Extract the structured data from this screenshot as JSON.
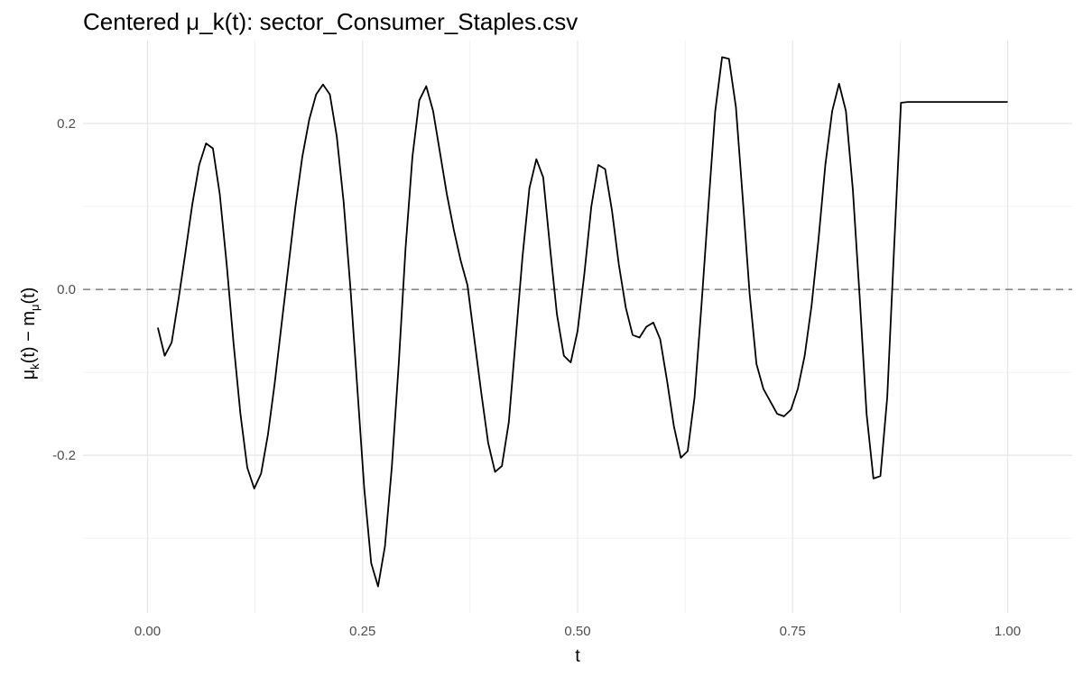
{
  "chart_data": {
    "type": "line",
    "title": "Centered μ_k(t): sector_Consumer_Staples.csv",
    "xlabel": "t",
    "ylabel": {
      "mu": "μ",
      "sub_k": "k",
      "paren1": "(t) − m",
      "sub_mu": "μ",
      "paren2": "(t)"
    },
    "xlim": [
      -0.075,
      1.075
    ],
    "ylim": [
      -0.39,
      0.3
    ],
    "x_ticks": [
      0.0,
      0.25,
      0.5,
      0.75,
      1.0
    ],
    "x_tick_labels": [
      "0.00",
      "0.25",
      "0.50",
      "0.75",
      "1.00"
    ],
    "y_ticks": [
      -0.2,
      0.0,
      0.2
    ],
    "y_tick_labels": [
      "-0.2",
      "0.0",
      "0.2"
    ],
    "grid": true,
    "reference_line": {
      "y": 0.0,
      "style": "dashed",
      "color": "#7f7f7f"
    },
    "series": [
      {
        "color": "#000000",
        "x": [
          0.012,
          0.02,
          0.028,
          0.036,
          0.044,
          0.052,
          0.06,
          0.068,
          0.076,
          0.084,
          0.092,
          0.1,
          0.108,
          0.116,
          0.124,
          0.132,
          0.14,
          0.148,
          0.156,
          0.164,
          0.172,
          0.18,
          0.188,
          0.196,
          0.204,
          0.212,
          0.22,
          0.228,
          0.236,
          0.244,
          0.252,
          0.26,
          0.268,
          0.276,
          0.284,
          0.292,
          0.3,
          0.308,
          0.316,
          0.324,
          0.332,
          0.34,
          0.348,
          0.356,
          0.364,
          0.372,
          0.38,
          0.388,
          0.396,
          0.404,
          0.412,
          0.42,
          0.428,
          0.436,
          0.444,
          0.452,
          0.46,
          0.468,
          0.476,
          0.484,
          0.492,
          0.5,
          0.508,
          0.516,
          0.524,
          0.532,
          0.54,
          0.548,
          0.556,
          0.564,
          0.572,
          0.58,
          0.588,
          0.596,
          0.604,
          0.612,
          0.62,
          0.628,
          0.636,
          0.644,
          0.652,
          0.66,
          0.668,
          0.676,
          0.684,
          0.692,
          0.7,
          0.708,
          0.716,
          0.724,
          0.732,
          0.74,
          0.748,
          0.756,
          0.764,
          0.772,
          0.78,
          0.788,
          0.796,
          0.804,
          0.812,
          0.82,
          0.828,
          0.836,
          0.844,
          0.852,
          0.86,
          0.868,
          0.876,
          0.884,
          0.892,
          0.9,
          0.908,
          0.916,
          0.924,
          0.932,
          0.94,
          0.948,
          0.956,
          0.964,
          0.972,
          0.98,
          0.988,
          0.996,
          1.0
        ],
        "y": [
          -0.046,
          -0.08,
          -0.064,
          -0.012,
          0.044,
          0.102,
          0.15,
          0.176,
          0.17,
          0.115,
          0.03,
          -0.065,
          -0.15,
          -0.215,
          -0.24,
          -0.222,
          -0.175,
          -0.112,
          -0.04,
          0.03,
          0.1,
          0.16,
          0.205,
          0.235,
          0.247,
          0.235,
          0.185,
          0.105,
          0.0,
          -0.12,
          -0.24,
          -0.33,
          -0.358,
          -0.31,
          -0.215,
          -0.09,
          0.05,
          0.16,
          0.228,
          0.245,
          0.215,
          0.165,
          0.115,
          0.072,
          0.035,
          0.005,
          -0.06,
          -0.125,
          -0.185,
          -0.22,
          -0.213,
          -0.16,
          -0.06,
          0.04,
          0.122,
          0.157,
          0.135,
          0.05,
          -0.03,
          -0.08,
          -0.088,
          -0.05,
          0.02,
          0.1,
          0.15,
          0.145,
          0.095,
          0.03,
          -0.022,
          -0.055,
          -0.058,
          -0.045,
          -0.04,
          -0.06,
          -0.11,
          -0.165,
          -0.203,
          -0.195,
          -0.13,
          -0.02,
          0.1,
          0.215,
          0.28,
          0.278,
          0.22,
          0.11,
          -0.005,
          -0.09,
          -0.12,
          -0.135,
          -0.15,
          -0.153,
          -0.145,
          -0.12,
          -0.08,
          -0.02,
          0.06,
          0.15,
          0.215,
          0.248,
          0.215,
          0.12,
          -0.01,
          -0.15,
          -0.228,
          -0.225,
          -0.13,
          0.05,
          0.225,
          0.226,
          0.226,
          0.226,
          0.226,
          0.226,
          0.226,
          0.226,
          0.226,
          0.226,
          0.226,
          0.226,
          0.226,
          0.226,
          0.226,
          0.226,
          0.226
        ]
      }
    ]
  }
}
